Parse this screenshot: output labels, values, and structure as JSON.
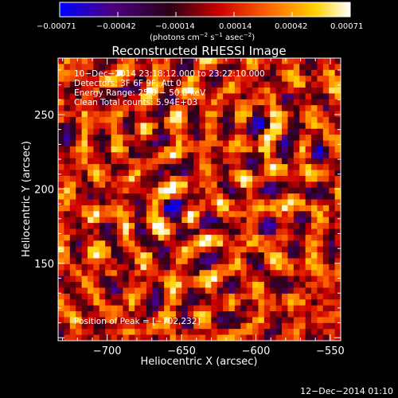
{
  "chart_data": {
    "type": "heatmap",
    "title": "Reconstructed RHESSI Image",
    "xlabel": "Heliocentric X (arcsec)",
    "ylabel": "Heliocentric Y (arcsec)",
    "xlim": [
      -733,
      -543
    ],
    "ylim": [
      98,
      288
    ],
    "x_ticks": [
      -700,
      -650,
      -600,
      -550
    ],
    "x_tick_labels": [
      "−700",
      "−650",
      "−600",
      "−550"
    ],
    "y_ticks": [
      150,
      200,
      250
    ],
    "y_tick_labels": [
      "150",
      "200",
      "250"
    ],
    "colorbar": {
      "range": [
        -0.00071,
        0.00071
      ],
      "tick_labels": [
        "−0.00071",
        "−0.00042",
        "−0.00014",
        "0.00014",
        "0.00042",
        "0.00071"
      ],
      "unit_label_parts": [
        "(photons cm",
        "−2",
        " s",
        "−1",
        " asec",
        "−2",
        ")"
      ],
      "colors": [
        "#0000ff",
        "#4b0082",
        "#2a0015",
        "#cc0000",
        "#ff6600",
        "#ffd200",
        "#ffffff"
      ]
    },
    "annotations": [
      "10−Dec−2014 23:18:12.000 to 23:22:10.000",
      "Detectors: 3F 6F 9F, Att 0",
      "Energy Range: 25.0 − 50.0 keV",
      "Clean     Total counts: 5.94E+03"
    ],
    "peak_label": "Position of Peak = [−702,232]",
    "peak_position": [
      -702,
      232
    ],
    "grid": false,
    "legend": "colorbar-top"
  },
  "footer": {
    "timestamp": "12−Dec−2014 01:10"
  }
}
